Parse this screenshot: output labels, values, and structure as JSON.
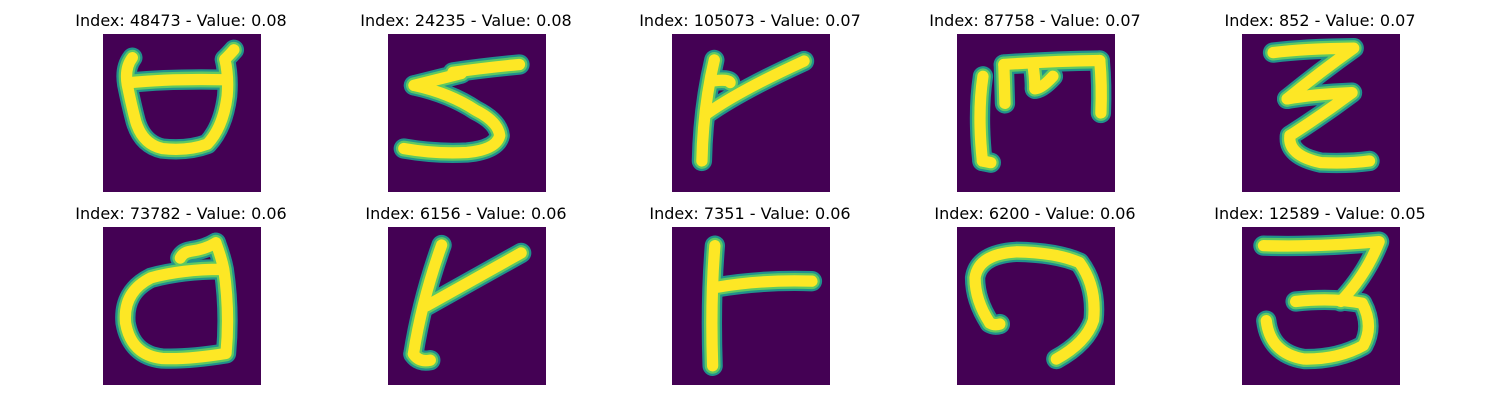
{
  "colors": {
    "background": "#440154",
    "stroke_edge": "#21918c",
    "stroke_mid": "#5ec962",
    "stroke_core": "#fde725"
  },
  "tiles": [
    {
      "title": "Index: 48473 - Value: 0.08",
      "glyph": "d-shape"
    },
    {
      "title": "Index: 24235 - Value: 0.08",
      "glyph": "s-shape"
    },
    {
      "title": "Index: 105073 - Value: 0.07",
      "glyph": "k-shape"
    },
    {
      "title": "Index: 87758 - Value: 0.07",
      "glyph": "m-shape"
    },
    {
      "title": "Index: 852 - Value: 0.07",
      "glyph": "z-shape"
    },
    {
      "title": "Index: 73782 - Value: 0.06",
      "glyph": "d-shape-2"
    },
    {
      "title": "Index: 6156 - Value: 0.06",
      "glyph": "k-shape-2"
    },
    {
      "title": "Index: 7351 - Value: 0.06",
      "glyph": "r-shape"
    },
    {
      "title": "Index: 6200 - Value: 0.06",
      "glyph": "n-shape"
    },
    {
      "title": "Index: 12589 - Value: 0.05",
      "glyph": "3-shape"
    }
  ]
}
